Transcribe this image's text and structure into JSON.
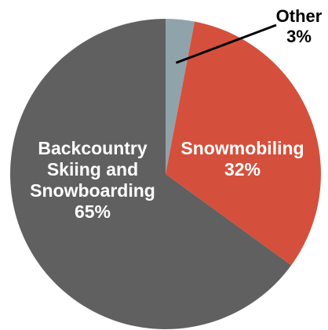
{
  "chart_data": {
    "type": "pie",
    "title": "",
    "slices": [
      {
        "label_lines": [
          "Other"
        ],
        "percent_label": "3%",
        "value": 3,
        "color": "#8FA3AA",
        "label_color": "#000000"
      },
      {
        "label_lines": [
          "Snowmobiling"
        ],
        "percent_label": "32%",
        "value": 32,
        "color": "#D5503C",
        "label_color": "#ffffff"
      },
      {
        "label_lines": [
          "Backcountry",
          "Skiing and",
          "Snowboarding"
        ],
        "percent_label": "65%",
        "value": 65,
        "color": "#606061",
        "label_color": "#ffffff"
      }
    ],
    "start_angle": "12 o'clock",
    "direction": "clockwise",
    "other_label_placement": "outside top-right with leader line"
  }
}
